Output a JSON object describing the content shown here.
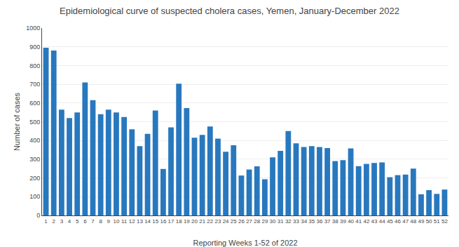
{
  "chart_data": {
    "type": "bar",
    "title": "Epidemiological curve of suspected cholera cases, Yemen, January-December 2022",
    "xlabel": "Reporting Weeks 1-52 of 2022",
    "ylabel": "Number of cases",
    "categories": [
      "1",
      "2",
      "3",
      "4",
      "5",
      "6",
      "7",
      "8",
      "9",
      "10",
      "11",
      "12",
      "13",
      "14",
      "15",
      "16",
      "17",
      "18",
      "19",
      "20",
      "21",
      "22",
      "23",
      "24",
      "25",
      "26",
      "27",
      "28",
      "29",
      "30",
      "31",
      "32",
      "33",
      "34",
      "35",
      "36",
      "37",
      "38",
      "39",
      "40",
      "41",
      "42",
      "43",
      "44",
      "45",
      "46",
      "47",
      "48",
      "49",
      "50",
      "51",
      "52"
    ],
    "values": [
      895,
      880,
      565,
      520,
      550,
      710,
      615,
      540,
      565,
      550,
      525,
      460,
      370,
      435,
      560,
      248,
      470,
      703,
      573,
      415,
      430,
      475,
      410,
      340,
      375,
      213,
      245,
      262,
      193,
      310,
      345,
      450,
      385,
      365,
      370,
      365,
      360,
      290,
      295,
      358,
      263,
      275,
      280,
      283,
      204,
      215,
      218,
      250,
      113,
      135,
      115,
      138
    ],
    "color": "#2878BE",
    "ylim": [
      0,
      1000
    ],
    "yticks": [
      0,
      100,
      200,
      300,
      400,
      500,
      600,
      700,
      800,
      900,
      1000
    ],
    "grid": true
  }
}
